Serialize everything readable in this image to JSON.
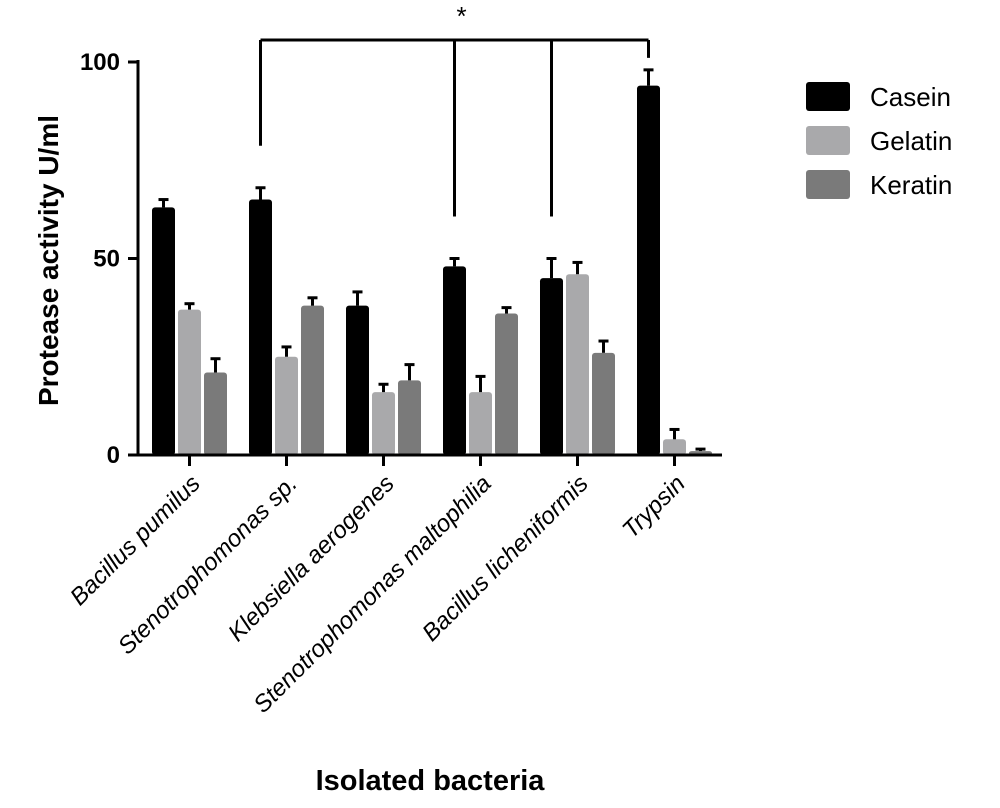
{
  "chart_data": {
    "type": "bar",
    "ylabel": "Protease activity U/ml",
    "xlabel": "Isolated bacteria",
    "ylim": [
      0,
      100
    ],
    "yticks": [
      0,
      50,
      100
    ],
    "categories": [
      "Bacillus pumilus",
      "Stenotrophomonas sp.",
      "Klebsiella aerogenes",
      "Stenotrophomonas maltophilia",
      "Bacillus licheniformis",
      "Trypsin"
    ],
    "series": [
      {
        "name": "Casein",
        "color": "#000000",
        "values": [
          63,
          65,
          38,
          48,
          45,
          94
        ],
        "errors": [
          2,
          3,
          3.5,
          2,
          5,
          4
        ]
      },
      {
        "name": "Gelatin",
        "color": "#a9a9ab",
        "values": [
          37,
          25,
          16,
          16,
          46,
          4
        ],
        "errors": [
          1.5,
          2.5,
          2,
          4,
          3,
          2.5
        ]
      },
      {
        "name": "Keratin",
        "color": "#7a7a7a",
        "values": [
          21,
          38,
          19,
          36,
          26,
          1
        ],
        "errors": [
          3.5,
          2,
          4,
          1.5,
          3,
          0.5
        ]
      }
    ],
    "legend_position": "top-right",
    "grid": false,
    "significance": {
      "label": "*",
      "comparisons": [
        {
          "from": "Stenotrophomonas sp.",
          "to": "Trypsin",
          "series": "Casein"
        },
        {
          "from": "Stenotrophomonas maltophilia",
          "to": "Trypsin",
          "series": "Casein"
        },
        {
          "from": "Bacillus licheniformis",
          "to": "Trypsin",
          "series": "Casein"
        }
      ]
    }
  }
}
